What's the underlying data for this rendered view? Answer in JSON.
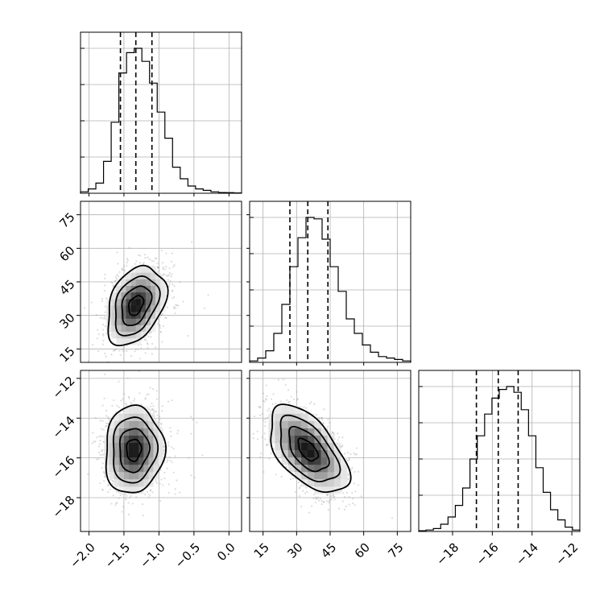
{
  "chart_data": {
    "type": "corner",
    "parameters": [
      {
        "ticks": [
          "−2.0",
          "−1.5",
          "−1.0",
          "−0.5",
          "0.0"
        ],
        "tick_values": [
          -2.0,
          -1.5,
          -1.0,
          -0.5,
          0.0
        ],
        "range": [
          -2.12,
          0.18
        ]
      },
      {
        "ticks": [
          "15",
          "30",
          "45",
          "60",
          "75"
        ],
        "tick_values": [
          15,
          30,
          45,
          60,
          75
        ],
        "range": [
          9,
          81
        ]
      },
      {
        "ticks": [
          "−18",
          "−16",
          "−14",
          "−12"
        ],
        "tick_values": [
          -18,
          -16,
          -14,
          -12
        ],
        "range": [
          -19.7,
          -11.6
        ]
      }
    ],
    "quantiles": [
      [
        -1.55,
        -1.33,
        -1.1
      ],
      [
        27,
        35,
        44
      ],
      [
        -16.8,
        -15.7,
        -14.7
      ]
    ],
    "histograms": [
      {
        "parameter": 0,
        "counts": [
          0.01,
          0.03,
          0.07,
          0.22,
          0.49,
          0.83,
          0.97,
          1.0,
          0.91,
          0.76,
          0.56,
          0.38,
          0.18,
          0.1,
          0.05,
          0.03,
          0.02,
          0.01,
          0.005,
          0.004,
          0.002
        ]
      },
      {
        "parameter": 1,
        "counts": [
          0.01,
          0.03,
          0.08,
          0.2,
          0.4,
          0.66,
          0.86,
          1.0,
          0.99,
          0.85,
          0.66,
          0.49,
          0.3,
          0.2,
          0.12,
          0.07,
          0.04,
          0.03,
          0.02,
          0.01
        ]
      },
      {
        "parameter": 2,
        "counts": [
          0.005,
          0.01,
          0.02,
          0.05,
          0.1,
          0.18,
          0.3,
          0.5,
          0.66,
          0.81,
          0.92,
          0.98,
          1.0,
          0.96,
          0.84,
          0.66,
          0.44,
          0.27,
          0.15,
          0.08,
          0.03,
          0.01
        ]
      }
    ],
    "pairs": [
      {
        "x_param": 0,
        "y_param": 1,
        "center": [
          -1.33,
          34.5
        ],
        "sigma": [
          0.21,
          8.8
        ],
        "corr": 0.35
      },
      {
        "x_param": 0,
        "y_param": 2,
        "center": [
          -1.36,
          -15.6
        ],
        "sigma": [
          0.21,
          1.1
        ],
        "corr": 0.05
      },
      {
        "x_param": 1,
        "y_param": 2,
        "center": [
          35.0,
          -15.6
        ],
        "sigma": [
          8.8,
          1.1
        ],
        "corr": -0.55
      }
    ],
    "contour_levels_sigma": [
      0.5,
      1.0,
      1.5,
      2.0
    ],
    "grid": true
  }
}
